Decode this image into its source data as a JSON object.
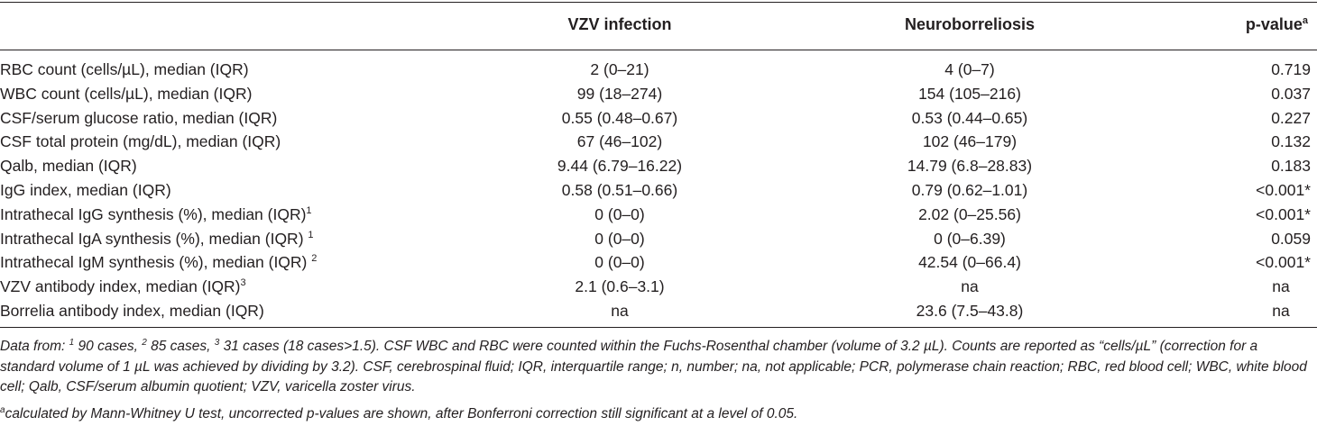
{
  "header": {
    "col1": "VZV infection",
    "col2": "Neuroborreliosis",
    "col3": "p-value",
    "col3_sup": "a"
  },
  "rows": [
    {
      "label": "RBC count (cells/µL), median (IQR)",
      "sup": "",
      "vzv": "2 (0–21)",
      "nb": "4 (0–7)",
      "p": "0.719"
    },
    {
      "label": "WBC count (cells/µL), median (IQR)",
      "sup": "",
      "vzv": "99 (18–274)",
      "nb": "154 (105–216)",
      "p": "0.037"
    },
    {
      "label": "CSF/serum glucose ratio, median (IQR)",
      "sup": "",
      "vzv": "0.55 (0.48–0.67)",
      "nb": "0.53 (0.44–0.65)",
      "p": "0.227"
    },
    {
      "label": "CSF total protein (mg/dL), median (IQR)",
      "sup": "",
      "vzv": "67 (46–102)",
      "nb": "102 (46–179)",
      "p": "0.132"
    },
    {
      "label": "Qalb, median (IQR)",
      "sup": "",
      "vzv": "9.44 (6.79–16.22)",
      "nb": "14.79 (6.8–28.83)",
      "p": "0.183"
    },
    {
      "label": "IgG index, median (IQR)",
      "sup": "",
      "vzv": "0.58 (0.51–0.66)",
      "nb": "0.79 (0.62–1.01)",
      "p": "<0.001*"
    },
    {
      "label": "Intrathecal IgG synthesis (%), median (IQR)",
      "sup": "1",
      "vzv": "0 (0–0)",
      "nb": "2.02 (0–25.56)",
      "p": "<0.001*"
    },
    {
      "label": "Intrathecal IgA synthesis (%), median (IQR) ",
      "sup": "1",
      "vzv": "0 (0–0)",
      "nb": "0 (0–6.39)",
      "p": "0.059"
    },
    {
      "label": "Intrathecal IgM synthesis (%), median (IQR) ",
      "sup": "2",
      "vzv": "0 (0–0)",
      "nb": "42.54 (0–66.4)",
      "p": "<0.001*"
    },
    {
      "label": "VZV antibody index, median (IQR)",
      "sup": "3",
      "vzv": "2.1 (0.6–3.1)",
      "nb": "na",
      "p": "na"
    },
    {
      "label": "Borrelia antibody index, median (IQR)",
      "sup": "",
      "vzv": "na",
      "nb": "23.6 (7.5–43.8)",
      "p": "na"
    }
  ],
  "notes": {
    "lead": "Data from: ",
    "s1": "1",
    "t1": " 90 cases, ",
    "s2": "2",
    "t2": " 85 cases, ",
    "s3": "3",
    "t3": " 31 cases (18 cases>1.5). CSF WBC and RBC were counted within the Fuchs-Rosenthal chamber (volume of 3.2 µL). Counts are reported as “cells/µL” (correction for a standard volume of 1 µL was achieved by dividing by 3.2). CSF, cerebrospinal fluid; IQR, interquartile range; n, number; na, not applicable; PCR, polymerase chain reaction; RBC, red blood cell; WBC, white blood cell; Qalb, CSF/serum albumin quotient; VZV, varicella zoster virus.",
    "footnote_sup": "a",
    "footnote": "calculated by Mann-Whitney U test, uncorrected p-values are shown, after Bonferroni correction still significant at a level of 0.05."
  }
}
